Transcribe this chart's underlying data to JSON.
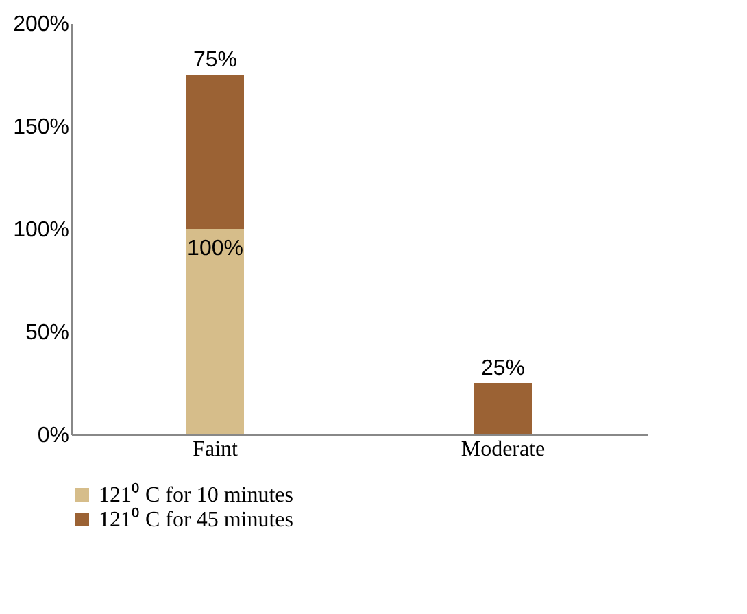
{
  "chart_data": {
    "type": "bar",
    "stacked": true,
    "categories": [
      "Faint",
      "Moderate"
    ],
    "series": [
      {
        "name": "121⁰ C for 10 minutes",
        "color": "#d6bd8a",
        "values": [
          100,
          0
        ],
        "value_labels": [
          "100%",
          null
        ]
      },
      {
        "name": "121⁰ C for 45 minutes",
        "color": "#9b6234",
        "values": [
          75,
          25
        ],
        "value_labels": [
          "75%",
          "25%"
        ]
      }
    ],
    "ylim": [
      0,
      200
    ],
    "yticks": [
      {
        "value": 0,
        "label": "0%"
      },
      {
        "value": 50,
        "label": "50%"
      },
      {
        "value": 100,
        "label": "100%"
      },
      {
        "value": 150,
        "label": "150%"
      },
      {
        "value": 200,
        "label": "200%"
      }
    ],
    "grid": false,
    "legend": "bottom"
  }
}
